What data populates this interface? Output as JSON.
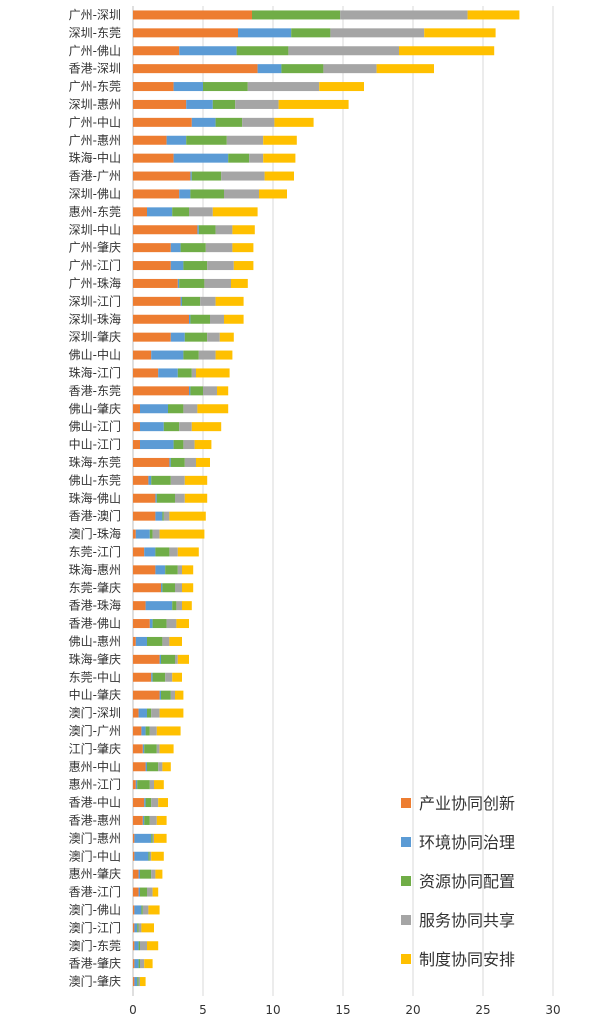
{
  "chart_data": {
    "type": "bar",
    "orientation": "horizontal",
    "stacked": true,
    "xlim": [
      0,
      30
    ],
    "x_ticks": [
      0,
      5,
      10,
      15,
      20,
      25,
      30
    ],
    "grid": true,
    "legend_position": "bottom-right",
    "colors": [
      "#ED7D31",
      "#5B9BD5",
      "#70AD47",
      "#A5A5A5",
      "#FFC000"
    ],
    "categories": [
      "广州-深圳",
      "深圳-东莞",
      "广州-佛山",
      "香港-深圳",
      "广州-东莞",
      "深圳-惠州",
      "广州-中山",
      "广州-惠州",
      "珠海-中山",
      "香港-广州",
      "深圳-佛山",
      "惠州-东莞",
      "深圳-中山",
      "广州-肇庆",
      "广州-江门",
      "广州-珠海",
      "深圳-江门",
      "深圳-珠海",
      "深圳-肇庆",
      "佛山-中山",
      "珠海-江门",
      "香港-东莞",
      "佛山-肇庆",
      "佛山-江门",
      "中山-江门",
      "珠海-东莞",
      "佛山-东莞",
      "珠海-佛山",
      "香港-澳门",
      "澳门-珠海",
      "东莞-江门",
      "珠海-惠州",
      "东莞-肇庆",
      "香港-珠海",
      "香港-佛山",
      "佛山-惠州",
      "珠海-肇庆",
      "东莞-中山",
      "中山-肇庆",
      "澳门-深圳",
      "澳门-广州",
      "江门-肇庆",
      "惠州-中山",
      "惠州-江门",
      "香港-中山",
      "香港-惠州",
      "澳门-惠州",
      "澳门-中山",
      "惠州-肇庆",
      "香港-江门",
      "澳门-佛山",
      "澳门-江门",
      "澳门-东莞",
      "香港-肇庆",
      "澳门-肇庆"
    ],
    "series": [
      {
        "name": "产业协同创新",
        "values": [
          8.5,
          7.5,
          3.3,
          8.9,
          2.9,
          3.8,
          4.2,
          2.4,
          2.9,
          4.1,
          3.3,
          1.0,
          4.6,
          2.7,
          2.7,
          3.2,
          3.4,
          4.0,
          2.7,
          1.3,
          1.8,
          4.0,
          0.5,
          0.5,
          0.5,
          2.6,
          1.1,
          1.6,
          1.6,
          0.2,
          0.8,
          1.6,
          2.0,
          0.9,
          1.2,
          0.2,
          1.9,
          1.3,
          1.9,
          0.4,
          0.6,
          0.7,
          0.9,
          0.2,
          0.8,
          0.7,
          0.1,
          0.1,
          0.4,
          0.4,
          0.1,
          0.1,
          0.1,
          0.1,
          0.1
        ]
      },
      {
        "name": "环境协同治理",
        "values": [
          0,
          3.8,
          4.1,
          1.7,
          2.1,
          1.9,
          1.7,
          1.4,
          3.9,
          0.1,
          0.8,
          1.8,
          0.1,
          0.7,
          0.9,
          0.1,
          0.1,
          0.1,
          1.0,
          2.3,
          1.4,
          0.1,
          2.0,
          1.7,
          2.4,
          0.1,
          0.2,
          0.1,
          0.5,
          1.0,
          0.8,
          0.7,
          0.1,
          1.9,
          0.2,
          0.8,
          0.1,
          0.1,
          0.1,
          0.6,
          0.3,
          0.1,
          0.1,
          0.1,
          0.1,
          0.1,
          1.2,
          1.0,
          0.1,
          0.1,
          0.5,
          0.2,
          0.3,
          0.3,
          0.2
        ]
      },
      {
        "name": "资源协同配置",
        "values": [
          6.3,
          2.8,
          3.7,
          3.0,
          3.2,
          1.6,
          1.9,
          2.9,
          1.5,
          2.1,
          2.4,
          1.2,
          1.2,
          1.8,
          1.7,
          1.8,
          1.3,
          1.4,
          1.6,
          1.1,
          1.0,
          0.9,
          1.1,
          1.1,
          0.7,
          1.0,
          1.4,
          1.3,
          0.1,
          0.2,
          1.0,
          0.9,
          0.9,
          0.3,
          1.0,
          1.1,
          1.0,
          0.9,
          0.7,
          0.3,
          0.3,
          0.9,
          0.8,
          0.9,
          0.4,
          0.4,
          0.1,
          0.1,
          0.8,
          0.5,
          0.1,
          0.1,
          0.1,
          0.1,
          0.1
        ]
      },
      {
        "name": "服务协同共享",
        "values": [
          9.1,
          6.7,
          7.9,
          3.8,
          5.1,
          3.1,
          2.3,
          2.6,
          1.0,
          3.1,
          2.5,
          1.7,
          1.2,
          1.9,
          1.9,
          1.9,
          1.1,
          1.0,
          0.9,
          1.2,
          0.3,
          1.0,
          1.0,
          0.9,
          0.8,
          0.8,
          1.0,
          0.7,
          0.4,
          0.5,
          0.6,
          0.3,
          0.5,
          0.4,
          0.7,
          0.5,
          0.2,
          0.5,
          0.3,
          0.6,
          0.5,
          0.2,
          0.3,
          0.3,
          0.5,
          0.5,
          0.1,
          0.1,
          0.3,
          0.4,
          0.4,
          0.2,
          0.5,
          0.3,
          0.1
        ]
      },
      {
        "name": "制度协同安排",
        "values": [
          3.7,
          5.1,
          6.8,
          4.1,
          3.2,
          5.0,
          2.8,
          2.4,
          2.3,
          2.1,
          2.0,
          3.2,
          1.6,
          1.5,
          1.4,
          1.2,
          2.0,
          1.4,
          1.0,
          1.2,
          2.4,
          0.8,
          2.2,
          2.1,
          1.2,
          1.0,
          1.6,
          1.6,
          2.6,
          3.2,
          1.5,
          0.8,
          0.8,
          0.7,
          0.9,
          0.9,
          0.8,
          0.7,
          0.6,
          1.7,
          1.7,
          1.0,
          0.6,
          0.7,
          0.7,
          0.7,
          0.9,
          0.9,
          0.5,
          0.4,
          0.8,
          0.9,
          0.8,
          0.6,
          0.4
        ]
      }
    ]
  }
}
